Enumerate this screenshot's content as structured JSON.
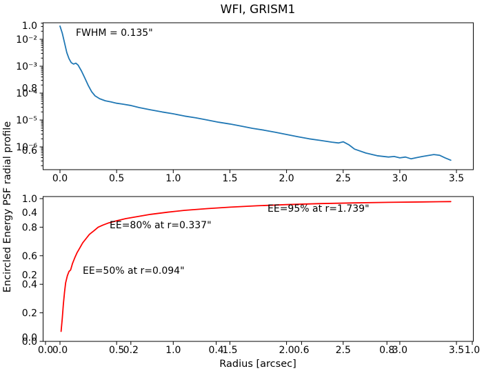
{
  "title": "WFI, GRISM1",
  "axes": {
    "shared_ylabel": "Encircled Energy  PSF radial profile",
    "xlabel": "Radius [arcsec]"
  },
  "psf_plot": {
    "yscale": "log",
    "xtick_labels": [
      "0.0",
      "0.5",
      "1.0",
      "1.5",
      "2.0",
      "2.5",
      "3.0",
      "3.5"
    ],
    "ytick_labels": [
      "10⁻²",
      "10⁻³",
      "10⁻⁴",
      "10⁻⁵",
      "10⁻⁶"
    ],
    "annotation_fwhm": "FWHM = 0.135\""
  },
  "ee_plot": {
    "xtick_labels": [
      "0.0",
      "0.5",
      "1.0",
      "1.5",
      "2.0",
      "2.5",
      "3.0",
      "3.5"
    ],
    "ytick_labels": [
      "0.0",
      "0.2",
      "0.4",
      "0.6",
      "0.8",
      "1.0"
    ],
    "annotations": {
      "ee50": "EE=50% at r=0.094\"",
      "ee80": "EE=80% at r=0.337\"",
      "ee95": "EE=95% at r=1.739\""
    }
  },
  "overlay_axis": {
    "xtick_labels": [
      "0.0",
      "0.2",
      "0.4",
      "0.6",
      "0.8",
      "1.0"
    ],
    "ytick_labels": [
      "1.0",
      "0.8",
      "0.6",
      "0.4",
      "0.2",
      "0.0"
    ]
  },
  "colors": {
    "psf_line": "#1f77b4",
    "ee_line": "#ff0000",
    "axis": "#000000"
  },
  "chart_data": [
    {
      "type": "line",
      "title": "WFI, GRISM1",
      "xlabel": "Radius [arcsec]",
      "ylabel": "PSF radial profile",
      "yscale": "log",
      "xlim": [
        -0.175,
        3.675
      ],
      "ylim": [
        1.4e-07,
        0.042
      ],
      "xticks": [
        0.0,
        0.5,
        1.0,
        1.5,
        2.0,
        2.5,
        3.0,
        3.5
      ],
      "yticks": [
        0.01,
        0.001,
        0.0001,
        1e-05,
        1e-06
      ],
      "legend": "none",
      "grid": false,
      "annotations": [
        {
          "text": "FWHM = 0.135\""
        }
      ],
      "series": [
        {
          "name": "PSF radial profile",
          "color": "#1f77b4",
          "points": [
            [
              0.0,
              0.031
            ],
            [
              0.02,
              0.017
            ],
            [
              0.04,
              0.0074
            ],
            [
              0.06,
              0.0032
            ],
            [
              0.08,
              0.0019
            ],
            [
              0.1,
              0.00135
            ],
            [
              0.12,
              0.0012
            ],
            [
              0.14,
              0.0013
            ],
            [
              0.16,
              0.0011
            ],
            [
              0.19,
              0.00066
            ],
            [
              0.22,
              0.00036
            ],
            [
              0.25,
              0.00019
            ],
            [
              0.28,
              0.000112
            ],
            [
              0.31,
              7.9e-05
            ],
            [
              0.35,
              6.2e-05
            ],
            [
              0.4,
              5.2e-05
            ],
            [
              0.45,
              4.7e-05
            ],
            [
              0.5,
              4.2e-05
            ],
            [
              0.55,
              3.9e-05
            ],
            [
              0.62,
              3.5e-05
            ],
            [
              0.7,
              2.9e-05
            ],
            [
              0.8,
              2.4e-05
            ],
            [
              0.9,
              2e-05
            ],
            [
              1.0,
              1.7e-05
            ],
            [
              1.1,
              1.4e-05
            ],
            [
              1.2,
              1.2e-05
            ],
            [
              1.3,
              1e-05
            ],
            [
              1.4,
              8.3e-06
            ],
            [
              1.5,
              7.1e-06
            ],
            [
              1.6,
              5.9e-06
            ],
            [
              1.7,
              4.9e-06
            ],
            [
              1.8,
              4.2e-06
            ],
            [
              1.9,
              3.5e-06
            ],
            [
              2.0,
              2.9e-06
            ],
            [
              2.1,
              2.4e-06
            ],
            [
              2.2,
              2e-06
            ],
            [
              2.3,
              1.74e-06
            ],
            [
              2.4,
              1.5e-06
            ],
            [
              2.46,
              1.4e-06
            ],
            [
              2.5,
              1.55e-06
            ],
            [
              2.55,
              1.2e-06
            ],
            [
              2.6,
              8.3e-07
            ],
            [
              2.7,
              5.9e-07
            ],
            [
              2.8,
              4.7e-07
            ],
            [
              2.9,
              4.2e-07
            ],
            [
              2.95,
              4.4e-07
            ],
            [
              3.0,
              3.9e-07
            ],
            [
              3.05,
              4.2e-07
            ],
            [
              3.1,
              3.6e-07
            ],
            [
              3.15,
              4e-07
            ],
            [
              3.2,
              4.4e-07
            ],
            [
              3.3,
              5.2e-07
            ],
            [
              3.35,
              4.9e-07
            ],
            [
              3.4,
              3.9e-07
            ],
            [
              3.45,
              3.2e-07
            ]
          ]
        }
      ]
    },
    {
      "type": "line",
      "xlabel": "Radius [arcsec]",
      "ylabel": "Encircled Energy",
      "yscale": "linear",
      "xlim": [
        -0.175,
        3.675
      ],
      "ylim": [
        0.0,
        1.015
      ],
      "xticks": [
        0.0,
        0.5,
        1.0,
        1.5,
        2.0,
        2.5,
        3.0,
        3.5
      ],
      "yticks": [
        0.0,
        0.2,
        0.4,
        0.6,
        0.8,
        1.0
      ],
      "legend": "none",
      "grid": false,
      "annotations": [
        {
          "text": "EE=50% at r=0.094\"",
          "r": 0.094,
          "ee": 0.5
        },
        {
          "text": "EE=80% at r=0.337\"",
          "r": 0.337,
          "ee": 0.8
        },
        {
          "text": "EE=95% at r=1.739\"",
          "r": 1.739,
          "ee": 0.95
        }
      ],
      "series": [
        {
          "name": "Encircled Energy",
          "color": "#ff0000",
          "points": [
            [
              0.01,
              0.07
            ],
            [
              0.02,
              0.16
            ],
            [
              0.03,
              0.26
            ],
            [
              0.04,
              0.345
            ],
            [
              0.05,
              0.41
            ],
            [
              0.065,
              0.46
            ],
            [
              0.08,
              0.49
            ],
            [
              0.094,
              0.5
            ],
            [
              0.11,
              0.545
            ],
            [
              0.13,
              0.585
            ],
            [
              0.15,
              0.62
            ],
            [
              0.175,
              0.655
            ],
            [
              0.2,
              0.69
            ],
            [
              0.23,
              0.72
            ],
            [
              0.26,
              0.75
            ],
            [
              0.3,
              0.775
            ],
            [
              0.337,
              0.8
            ],
            [
              0.38,
              0.815
            ],
            [
              0.43,
              0.83
            ],
            [
              0.5,
              0.845
            ],
            [
              0.58,
              0.86
            ],
            [
              0.69,
              0.875
            ],
            [
              0.8,
              0.89
            ],
            [
              0.95,
              0.905
            ],
            [
              1.1,
              0.918
            ],
            [
              1.3,
              0.93
            ],
            [
              1.5,
              0.94
            ],
            [
              1.739,
              0.95
            ],
            [
              2.0,
              0.958
            ],
            [
              2.3,
              0.965
            ],
            [
              2.6,
              0.97
            ],
            [
              2.9,
              0.974
            ],
            [
              3.2,
              0.977
            ],
            [
              3.45,
              0.979
            ]
          ]
        }
      ]
    }
  ]
}
